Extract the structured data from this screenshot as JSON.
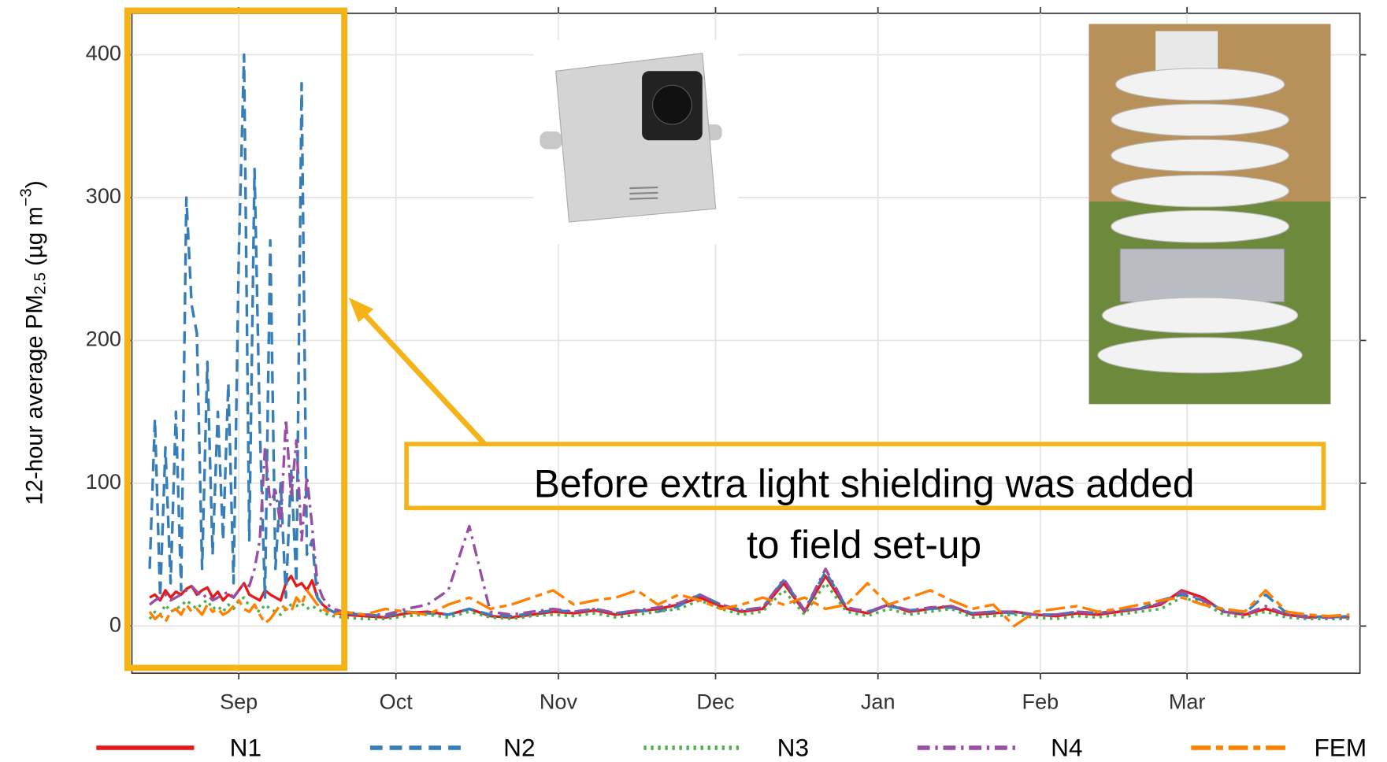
{
  "chart_data": {
    "type": "line",
    "ylabel": {
      "text": "12-hour average PM",
      "sub": "2.5",
      "unit": " (µg m",
      "sup": "−3",
      "close": ")"
    },
    "annotation": [
      "Before extra light shielding was added",
      "to field set-up"
    ],
    "x": [
      -17,
      -16,
      -15,
      -14,
      -13,
      -12,
      -11,
      -10,
      -9,
      -8,
      -7,
      -6,
      -5,
      -4,
      -3,
      -2,
      -1,
      0,
      1,
      2,
      3,
      4,
      5,
      6,
      7,
      8,
      9,
      10,
      11,
      12,
      13,
      14,
      15,
      16,
      17,
      18,
      20,
      24,
      28,
      32,
      36,
      40,
      44,
      48,
      52,
      56,
      60,
      64,
      68,
      72,
      76,
      80,
      84,
      88,
      92,
      96,
      100,
      104,
      108,
      112,
      116,
      120,
      124,
      128,
      132,
      136,
      140,
      144,
      148,
      152,
      156,
      160,
      164,
      168,
      172,
      176,
      180,
      184,
      188,
      192,
      196,
      200,
      204,
      208,
      212
    ],
    "xlim": [
      -20.4,
      214
    ],
    "xticks": [
      {
        "value": 0,
        "label": "Sep"
      },
      {
        "value": 30,
        "label": "Oct"
      },
      {
        "value": 61,
        "label": "Nov"
      },
      {
        "value": 91,
        "label": "Dec"
      },
      {
        "value": 122,
        "label": "Jan"
      },
      {
        "value": 153,
        "label": "Feb"
      },
      {
        "value": 181,
        "label": "Mar"
      }
    ],
    "ylim": [
      -33,
      429
    ],
    "yticks": [
      0,
      100,
      200,
      300,
      400
    ],
    "grid": true,
    "legend": "bottom",
    "series": [
      {
        "name": "N1",
        "color": "#e41a1c",
        "dash": "solid",
        "values": [
          20,
          22,
          18,
          25,
          20,
          24,
          22,
          26,
          28,
          22,
          25,
          27,
          20,
          24,
          18,
          22,
          20,
          25,
          30,
          22,
          20,
          18,
          25,
          22,
          20,
          18,
          30,
          35,
          28,
          30,
          25,
          32,
          20,
          15,
          12,
          10,
          8,
          7,
          6,
          9,
          10,
          8,
          12,
          7,
          6,
          8,
          10,
          9,
          11,
          8,
          10,
          12,
          15,
          20,
          14,
          10,
          12,
          30,
          10,
          35,
          12,
          9,
          15,
          10,
          12,
          14,
          8,
          9,
          10,
          8,
          7,
          9,
          8,
          10,
          12,
          15,
          25,
          20,
          10,
          8,
          12,
          8,
          6,
          7,
          6
        ]
      },
      {
        "name": "N2",
        "color": "#377eb8",
        "dash": "dashed",
        "values": [
          40,
          145,
          20,
          125,
          30,
          150,
          25,
          300,
          225,
          205,
          40,
          185,
          50,
          150,
          60,
          170,
          30,
          260,
          400,
          60,
          320,
          140,
          20,
          270,
          40,
          100,
          20,
          110,
          30,
          380,
          50,
          60,
          20,
          15,
          12,
          10,
          9,
          8,
          7,
          10,
          9,
          8,
          12,
          8,
          7,
          9,
          11,
          10,
          12,
          9,
          11,
          10,
          14,
          22,
          15,
          11,
          13,
          32,
          11,
          38,
          13,
          10,
          14,
          11,
          12,
          13,
          9,
          10,
          9,
          8,
          8,
          10,
          9,
          11,
          12,
          18,
          22,
          18,
          11,
          9,
          22,
          9,
          7,
          6,
          7
        ]
      },
      {
        "name": "N3",
        "color": "#4daf4a",
        "dash": "dotted",
        "values": [
          5,
          10,
          8,
          15,
          10,
          12,
          14,
          18,
          15,
          12,
          16,
          18,
          12,
          14,
          10,
          15,
          12,
          18,
          20,
          14,
          12,
          10,
          15,
          12,
          10,
          8,
          12,
          15,
          14,
          16,
          12,
          14,
          12,
          10,
          8,
          7,
          6,
          5,
          5,
          7,
          8,
          6,
          10,
          6,
          5,
          7,
          8,
          7,
          9,
          6,
          8,
          10,
          12,
          18,
          12,
          8,
          10,
          25,
          8,
          30,
          10,
          7,
          12,
          8,
          10,
          12,
          6,
          7,
          8,
          6,
          5,
          7,
          6,
          8,
          10,
          12,
          20,
          16,
          8,
          6,
          10,
          6,
          5,
          5,
          5
        ]
      },
      {
        "name": "N4",
        "color": "#984ea3",
        "dash": "dashdot",
        "values": [
          15,
          18,
          20,
          22,
          18,
          20,
          22,
          25,
          28,
          24,
          20,
          22,
          18,
          20,
          22,
          24,
          20,
          25,
          30,
          28,
          40,
          60,
          125,
          85,
          95,
          70,
          145,
          90,
          130,
          60,
          105,
          70,
          30,
          20,
          15,
          12,
          10,
          8,
          8,
          12,
          15,
          25,
          70,
          10,
          8,
          10,
          12,
          10,
          12,
          9,
          11,
          13,
          16,
          22,
          15,
          11,
          13,
          33,
          11,
          40,
          13,
          10,
          15,
          11,
          13,
          14,
          9,
          10,
          10,
          8,
          8,
          10,
          9,
          11,
          12,
          16,
          24,
          18,
          10,
          8,
          14,
          8,
          6,
          6,
          6
        ]
      },
      {
        "name": "FEM",
        "color": "#ff7f00",
        "dash": "longdash",
        "values": [
          10,
          5,
          8,
          3,
          10,
          12,
          8,
          15,
          10,
          12,
          8,
          15,
          10,
          12,
          8,
          10,
          14,
          18,
          12,
          10,
          15,
          8,
          2,
          5,
          10,
          15,
          12,
          10,
          20,
          15,
          25,
          20,
          15,
          12,
          10,
          8,
          10,
          8,
          12,
          10,
          8,
          15,
          20,
          12,
          15,
          20,
          25,
          15,
          18,
          20,
          25,
          15,
          22,
          18,
          12,
          15,
          20,
          15,
          20,
          12,
          15,
          30,
          15,
          20,
          25,
          18,
          12,
          15,
          0,
          10,
          12,
          14,
          10,
          12,
          15,
          18,
          20,
          15,
          12,
          10,
          25,
          10,
          8,
          7,
          8
        ]
      }
    ]
  }
}
